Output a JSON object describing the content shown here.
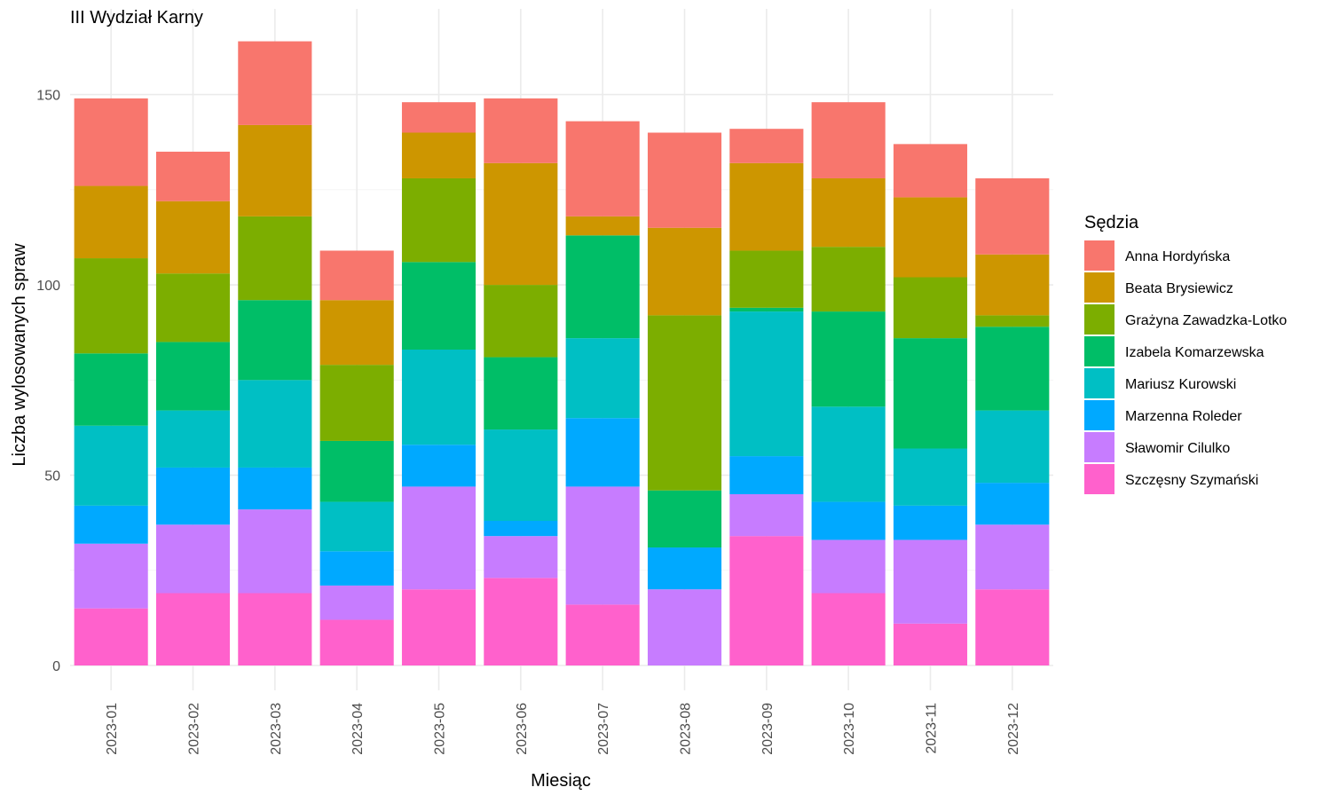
{
  "chart_data": {
    "type": "bar",
    "stacked": true,
    "title": "III Wydział Karny",
    "xlabel": "Miesiąc",
    "ylabel": "Liczba wylosowanych spraw",
    "ylim": [
      0,
      166
    ],
    "yticks": [
      0,
      50,
      100,
      150
    ],
    "grid": true,
    "legend_title": "Sędzia",
    "legend_position": "right",
    "categories": [
      "2023-01",
      "2023-02",
      "2023-03",
      "2023-04",
      "2023-05",
      "2023-06",
      "2023-07",
      "2023-08",
      "2023-09",
      "2023-10",
      "2023-11",
      "2023-12"
    ],
    "series": [
      {
        "name": "Anna Hordyńska",
        "color": "#F8766D",
        "values": [
          23,
          13,
          22,
          13,
          8,
          17,
          25,
          25,
          9,
          20,
          14,
          20
        ]
      },
      {
        "name": "Beata Brysiewicz",
        "color": "#CD9600",
        "values": [
          19,
          19,
          24,
          17,
          12,
          32,
          5,
          23,
          23,
          18,
          21,
          16
        ]
      },
      {
        "name": "Grażyna Zawadzka-Lotko",
        "color": "#7CAE00",
        "values": [
          25,
          18,
          22,
          20,
          22,
          19,
          0,
          46,
          15,
          17,
          16,
          3
        ]
      },
      {
        "name": "Izabela Komarzewska",
        "color": "#00BE67",
        "values": [
          19,
          18,
          21,
          16,
          23,
          19,
          27,
          15,
          1,
          25,
          29,
          22
        ]
      },
      {
        "name": "Mariusz Kurowski",
        "color": "#00BFC4",
        "values": [
          21,
          15,
          23,
          13,
          25,
          24,
          21,
          0,
          38,
          25,
          15,
          19
        ]
      },
      {
        "name": "Marzenna Roleder",
        "color": "#00A9FF",
        "values": [
          10,
          15,
          11,
          9,
          11,
          4,
          18,
          11,
          10,
          10,
          9,
          11
        ]
      },
      {
        "name": "Sławomir Cilulko",
        "color": "#C77CFF",
        "values": [
          17,
          18,
          22,
          9,
          27,
          11,
          31,
          20,
          11,
          14,
          22,
          17
        ]
      },
      {
        "name": "Szczęsny Szymański",
        "color": "#FF61CC",
        "values": [
          15,
          19,
          19,
          12,
          20,
          23,
          16,
          0,
          34,
          19,
          11,
          20
        ]
      }
    ]
  }
}
